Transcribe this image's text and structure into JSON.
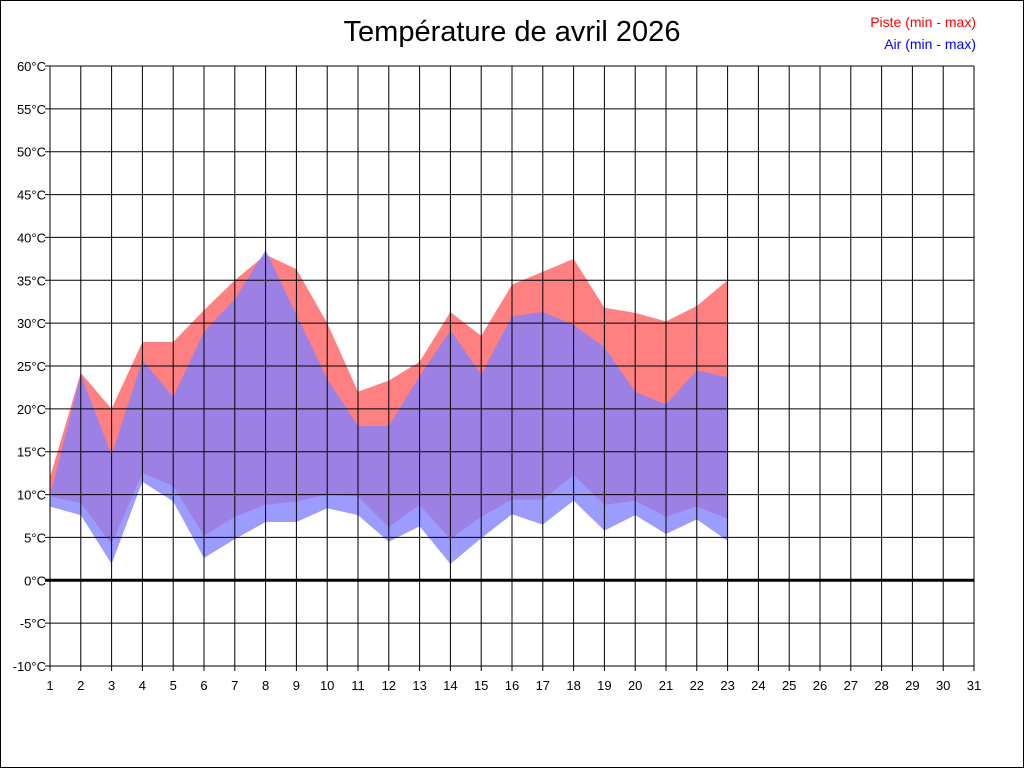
{
  "chart_data": {
    "type": "area",
    "title": "Température de avril 2026",
    "x": [
      1,
      2,
      3,
      4,
      5,
      6,
      7,
      8,
      9,
      10,
      11,
      12,
      13,
      14,
      15,
      16,
      17,
      18,
      19,
      20,
      21,
      22,
      23,
      24,
      25,
      26,
      27,
      28,
      29,
      30,
      31
    ],
    "x_ticks": [
      "1",
      "2",
      "3",
      "4",
      "5",
      "6",
      "7",
      "8",
      "9",
      "10",
      "11",
      "12",
      "13",
      "14",
      "15",
      "16",
      "17",
      "18",
      "19",
      "20",
      "21",
      "22",
      "23",
      "24",
      "25",
      "26",
      "27",
      "28",
      "29",
      "30",
      "31"
    ],
    "y_ticks": [
      "60°C",
      "55°C",
      "50°C",
      "45°C",
      "40°C",
      "35°C",
      "30°C",
      "25°C",
      "20°C",
      "15°C",
      "10°C",
      "5°C",
      "0°C",
      "-5°C",
      "-10°C"
    ],
    "ylim": [
      -10,
      60
    ],
    "grid": true,
    "legend_position": "top-right",
    "series": [
      {
        "name": "Piste (min - max)",
        "color": "#ff8080",
        "text_color": "#ff0000",
        "min": [
          9.8,
          9.0,
          4.2,
          12.5,
          11.0,
          5.2,
          7.4,
          8.8,
          9.2,
          10.0,
          9.8,
          6.2,
          8.8,
          4.8,
          7.4,
          9.4,
          9.4,
          12.3,
          8.8,
          9.3,
          7.4,
          8.6,
          7.2
        ],
        "max": [
          12.0,
          24.2,
          20.0,
          27.8,
          27.8,
          31.5,
          35.0,
          38.0,
          36.3,
          30.0,
          22.0,
          23.3,
          25.5,
          31.3,
          28.5,
          34.5,
          36.0,
          37.5,
          31.8,
          31.2,
          30.2,
          32.0,
          35.0
        ]
      },
      {
        "name": "Air (min - max)",
        "color": "#8080ff",
        "text_color": "#0000ff",
        "min": [
          8.6,
          7.6,
          1.9,
          11.5,
          9.2,
          2.6,
          4.8,
          6.8,
          6.8,
          8.4,
          7.6,
          4.5,
          6.3,
          1.9,
          4.9,
          7.7,
          6.5,
          9.3,
          5.8,
          7.6,
          5.4,
          7.1,
          4.6
        ],
        "max": [
          9.8,
          24.0,
          14.6,
          25.7,
          21.4,
          29.0,
          32.8,
          38.5,
          31.0,
          23.5,
          18.0,
          18.0,
          23.8,
          29.2,
          24.0,
          30.8,
          31.3,
          29.8,
          27.2,
          22.0,
          20.5,
          24.5,
          23.7
        ]
      }
    ]
  }
}
